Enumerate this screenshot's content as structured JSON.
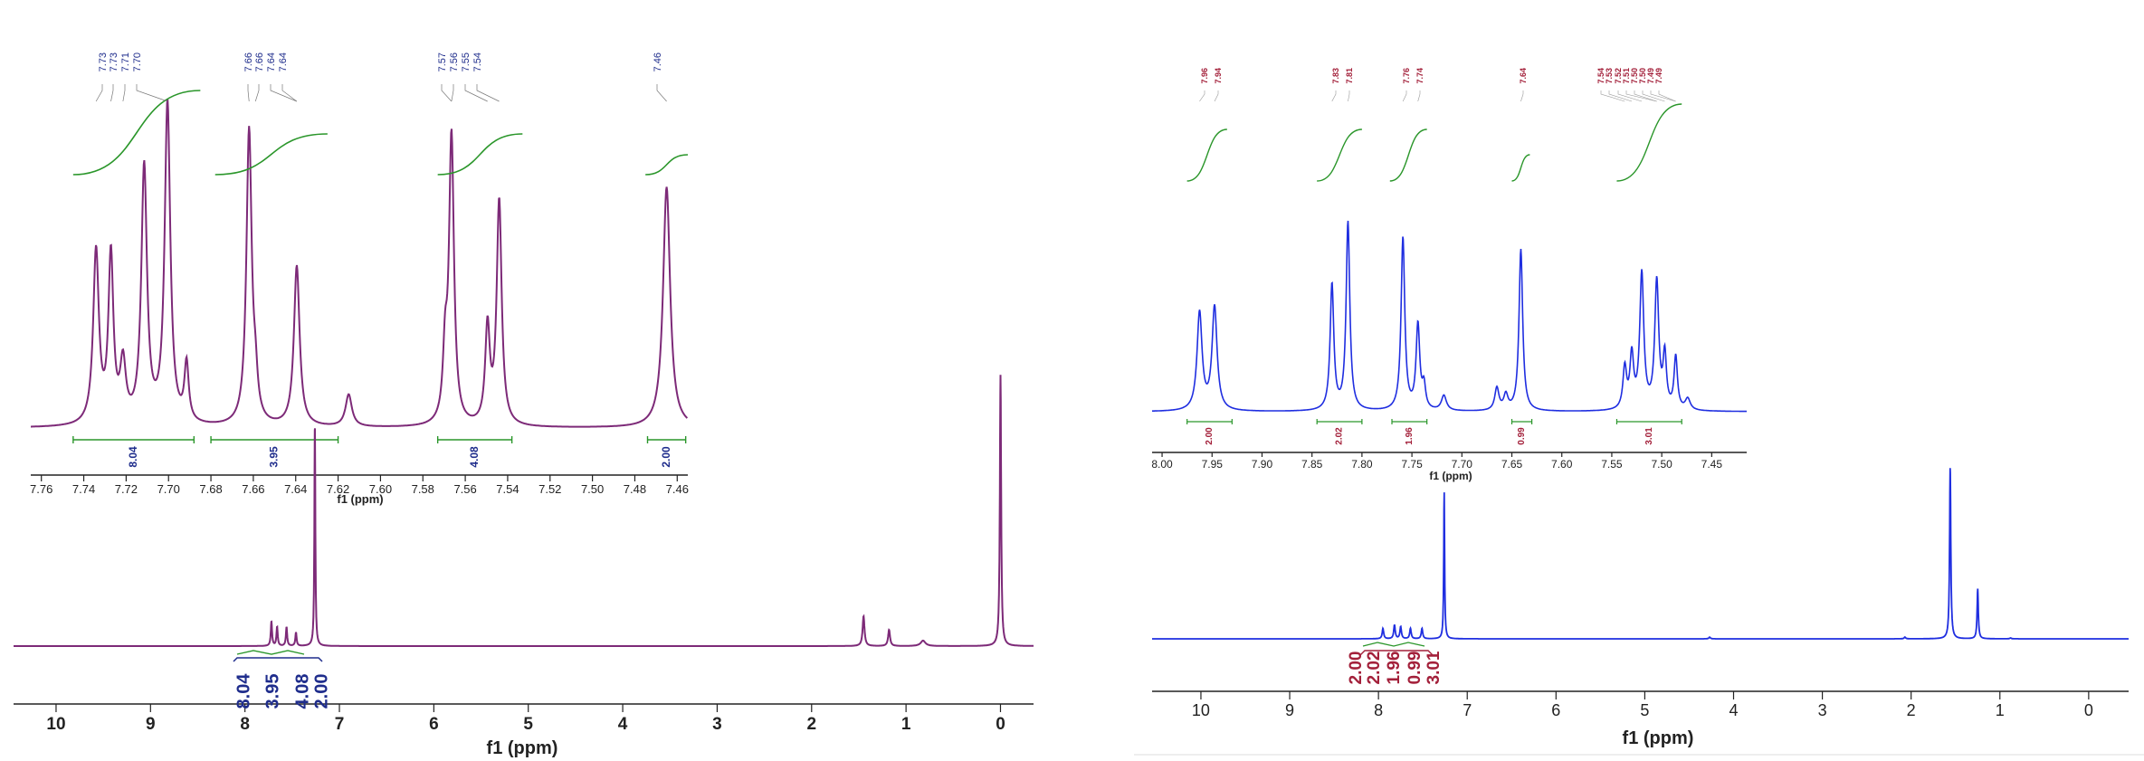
{
  "colors": {
    "left_spectrum": "#7d2a78",
    "right_spectrum": "#1f2ee0",
    "integral_curve": "#2a962a",
    "left_label": "#1f2d8c",
    "right_label": "#a3203a",
    "axis": "#222222"
  },
  "chart_data": [
    {
      "id": "left_inset",
      "type": "line",
      "spectrum_color": "#7d2a78",
      "xlabel": "f1 (ppm)",
      "xlim": [
        7.765,
        7.455
      ],
      "x_ticks": [
        7.76,
        7.74,
        7.72,
        7.7,
        7.68,
        7.66,
        7.64,
        7.62,
        7.6,
        7.58,
        7.56,
        7.54,
        7.52,
        7.5,
        7.48,
        7.46
      ],
      "x_tick_labels": [
        "7.76",
        "7.74",
        "7.72",
        "7.70",
        "7.68",
        "7.66",
        "7.64",
        "7.62",
        "7.60",
        "7.58",
        "7.56",
        "7.54",
        "7.52",
        "7.50",
        "7.48",
        "7.46"
      ],
      "peak_labels": [
        "7.73",
        "7.73",
        "7.71",
        "7.70",
        "7.66",
        "7.66",
        "7.64",
        "7.64",
        "7.57",
        "7.56",
        "7.55",
        "7.54",
        "7.46"
      ],
      "peaks": [
        {
          "x": 7.7342,
          "h": 0.54,
          "w": 0.0016
        },
        {
          "x": 7.7272,
          "h": 0.52,
          "w": 0.0014
        },
        {
          "x": 7.7215,
          "h": 0.18,
          "w": 0.0016
        },
        {
          "x": 7.7115,
          "h": 0.8,
          "w": 0.0016
        },
        {
          "x": 7.7005,
          "h": 1.0,
          "w": 0.0016
        },
        {
          "x": 7.6915,
          "h": 0.18,
          "w": 0.0012
        },
        {
          "x": 7.662,
          "h": 0.92,
          "w": 0.0015
        },
        {
          "x": 7.659,
          "h": 0.1,
          "w": 0.0012
        },
        {
          "x": 7.6395,
          "h": 0.5,
          "w": 0.0016
        },
        {
          "x": 7.615,
          "h": 0.1,
          "w": 0.0018
        },
        {
          "x": 7.5665,
          "h": 0.9,
          "w": 0.0014
        },
        {
          "x": 7.5695,
          "h": 0.2,
          "w": 0.0012
        },
        {
          "x": 7.5495,
          "h": 0.3,
          "w": 0.0013
        },
        {
          "x": 7.544,
          "h": 0.7,
          "w": 0.0014
        },
        {
          "x": 7.465,
          "h": 0.75,
          "w": 0.002
        }
      ],
      "integrals": [
        {
          "from": 7.745,
          "to": 7.688,
          "value": "8.04"
        },
        {
          "from": 7.68,
          "to": 7.62,
          "value": "3.95"
        },
        {
          "from": 7.573,
          "to": 7.538,
          "value": "4.08"
        },
        {
          "from": 7.474,
          "to": 7.456,
          "value": "2.00"
        }
      ]
    },
    {
      "id": "left_full",
      "type": "line",
      "spectrum_color": "#7d2a78",
      "xlabel": "f1 (ppm)",
      "xlim": [
        10.45,
        -0.35
      ],
      "x_ticks": [
        10,
        9,
        8,
        7,
        6,
        5,
        4,
        3,
        2,
        1,
        0
      ],
      "x_tick_labels": [
        "10",
        "9",
        "8",
        "7",
        "6",
        "5",
        "4",
        "3",
        "2",
        "1",
        "0"
      ],
      "peaks": [
        {
          "x": 7.72,
          "h": 0.09,
          "w": 0.008
        },
        {
          "x": 7.66,
          "h": 0.07,
          "w": 0.008
        },
        {
          "x": 7.56,
          "h": 0.07,
          "w": 0.008
        },
        {
          "x": 7.46,
          "h": 0.05,
          "w": 0.008
        },
        {
          "x": 7.26,
          "h": 0.83,
          "w": 0.006
        },
        {
          "x": 1.45,
          "h": 0.11,
          "w": 0.012
        },
        {
          "x": 1.18,
          "h": 0.06,
          "w": 0.012
        },
        {
          "x": 0.82,
          "h": 0.02,
          "w": 0.03
        },
        {
          "x": 0.0,
          "h": 1.0,
          "w": 0.008
        }
      ],
      "integrals": [
        "8.04",
        "3.95",
        "4.08",
        "2.00"
      ]
    },
    {
      "id": "right_inset",
      "type": "line",
      "spectrum_color": "#1f2ee0",
      "xlabel": "f1 (ppm)",
      "xlim": [
        8.01,
        7.415
      ],
      "x_ticks": [
        8.0,
        7.95,
        7.9,
        7.85,
        7.8,
        7.75,
        7.7,
        7.65,
        7.6,
        7.55,
        7.5,
        7.45
      ],
      "x_tick_labels": [
        "8.00",
        "7.95",
        "7.90",
        "7.85",
        "7.80",
        "7.75",
        "7.70",
        "7.65",
        "7.60",
        "7.55",
        "7.50",
        "7.45"
      ],
      "peak_labels": [
        "7.96",
        "7.94",
        "7.83",
        "7.81",
        "7.76",
        "7.74",
        "7.64",
        "7.54",
        "7.53",
        "7.52",
        "7.51",
        "7.50",
        "7.50",
        "7.49",
        "7.49"
      ],
      "peaks": [
        {
          "x": 7.9625,
          "h": 0.52,
          "w": 0.003
        },
        {
          "x": 7.9475,
          "h": 0.55,
          "w": 0.003
        },
        {
          "x": 7.83,
          "h": 0.67,
          "w": 0.0022
        },
        {
          "x": 7.814,
          "h": 1.0,
          "w": 0.0022
        },
        {
          "x": 7.759,
          "h": 0.92,
          "w": 0.0022
        },
        {
          "x": 7.744,
          "h": 0.45,
          "w": 0.0022
        },
        {
          "x": 7.738,
          "h": 0.12,
          "w": 0.002
        },
        {
          "x": 7.718,
          "h": 0.08,
          "w": 0.003
        },
        {
          "x": 7.665,
          "h": 0.12,
          "w": 0.0025
        },
        {
          "x": 7.656,
          "h": 0.08,
          "w": 0.0025
        },
        {
          "x": 7.641,
          "h": 0.86,
          "w": 0.0022
        },
        {
          "x": 7.537,
          "h": 0.22,
          "w": 0.0022
        },
        {
          "x": 7.53,
          "h": 0.28,
          "w": 0.0022
        },
        {
          "x": 7.52,
          "h": 0.72,
          "w": 0.0024
        },
        {
          "x": 7.505,
          "h": 0.68,
          "w": 0.0024
        },
        {
          "x": 7.497,
          "h": 0.28,
          "w": 0.002
        },
        {
          "x": 7.486,
          "h": 0.28,
          "w": 0.002
        },
        {
          "x": 7.474,
          "h": 0.06,
          "w": 0.003
        }
      ],
      "integrals": [
        {
          "from": 7.975,
          "to": 7.93,
          "value": "2.00"
        },
        {
          "from": 7.845,
          "to": 7.8,
          "value": "2.02"
        },
        {
          "from": 7.77,
          "to": 7.735,
          "value": "1.96"
        },
        {
          "from": 7.65,
          "to": 7.63,
          "value": "0.99"
        },
        {
          "from": 7.545,
          "to": 7.48,
          "value": "3.01"
        }
      ]
    },
    {
      "id": "right_full",
      "type": "line",
      "spectrum_color": "#1f2ee0",
      "xlabel": "f1 (ppm)",
      "xlim": [
        10.55,
        -0.45
      ],
      "x_ticks": [
        10,
        9,
        8,
        7,
        6,
        5,
        4,
        3,
        2,
        1,
        0
      ],
      "x_tick_labels": [
        "10",
        "9",
        "8",
        "7",
        "6",
        "5",
        "4",
        "3",
        "2",
        "1",
        "0"
      ],
      "peaks": [
        {
          "x": 7.95,
          "h": 0.06,
          "w": 0.01
        },
        {
          "x": 7.82,
          "h": 0.08,
          "w": 0.01
        },
        {
          "x": 7.75,
          "h": 0.07,
          "w": 0.01
        },
        {
          "x": 7.64,
          "h": 0.06,
          "w": 0.01
        },
        {
          "x": 7.51,
          "h": 0.06,
          "w": 0.01
        },
        {
          "x": 7.26,
          "h": 0.85,
          "w": 0.006
        },
        {
          "x": 4.27,
          "h": 0.01,
          "w": 0.01
        },
        {
          "x": 2.07,
          "h": 0.01,
          "w": 0.01
        },
        {
          "x": 1.56,
          "h": 1.0,
          "w": 0.008
        },
        {
          "x": 1.25,
          "h": 0.29,
          "w": 0.008
        },
        {
          "x": 0.88,
          "h": 0.005,
          "w": 0.01
        }
      ],
      "integrals": [
        "2.00",
        "2.02",
        "1.96",
        "0.99",
        "3.01"
      ]
    }
  ]
}
